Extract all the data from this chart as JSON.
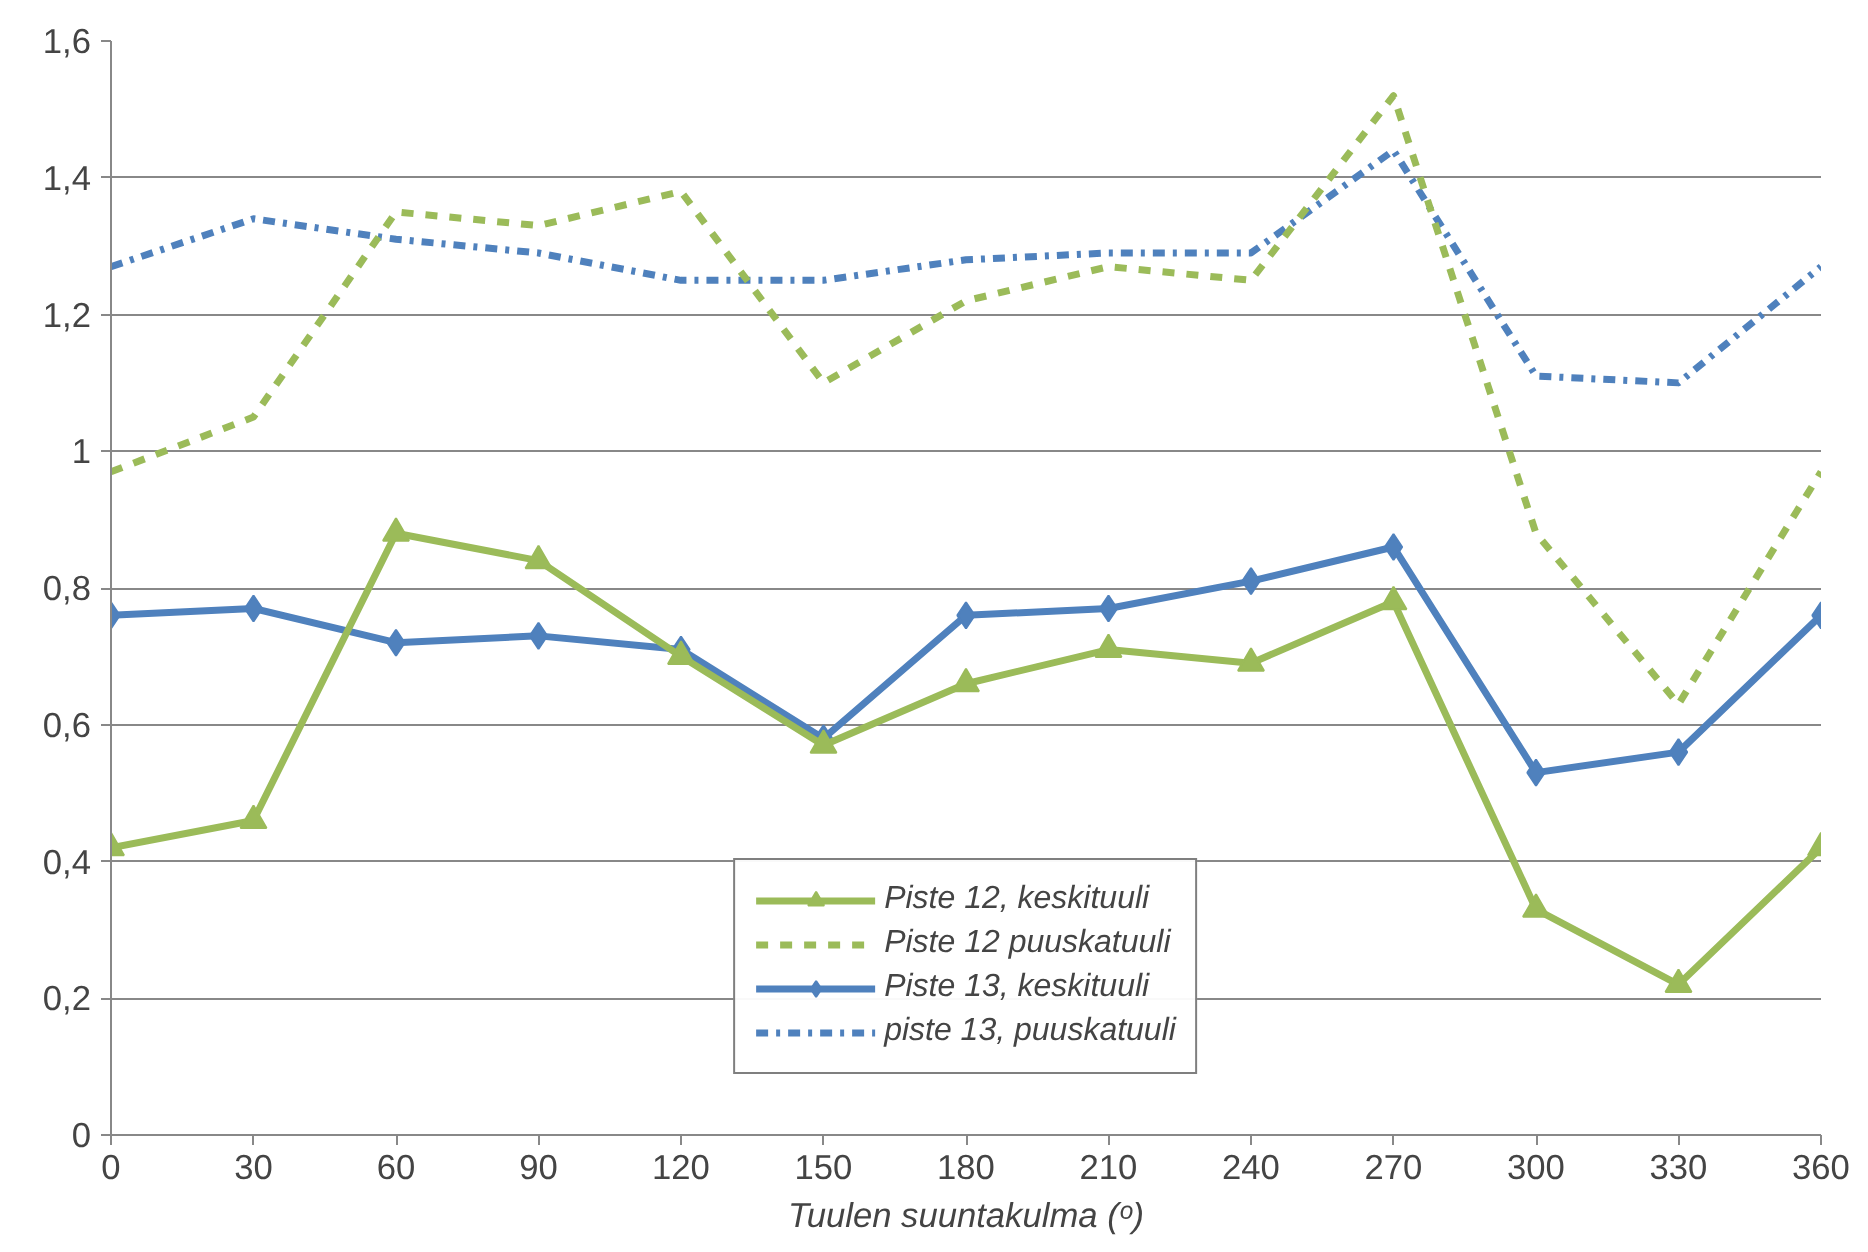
{
  "chart_data": {
    "type": "line",
    "xlabel": "Tuulen suuntakulma (ᵒ)",
    "x": [
      0,
      30,
      60,
      90,
      120,
      150,
      180,
      210,
      240,
      270,
      300,
      330,
      360
    ],
    "xlim": [
      0,
      360
    ],
    "xticks": [
      0,
      30,
      60,
      90,
      120,
      150,
      180,
      210,
      240,
      270,
      300,
      330,
      360
    ],
    "ylim": [
      0,
      1.6
    ],
    "yticks": [
      0,
      {
        "value": 0.2,
        "label": "0,2"
      },
      {
        "value": 0.4,
        "label": "0,4"
      },
      {
        "value": 0.6,
        "label": "0,6"
      },
      {
        "value": 0.8,
        "label": "0,8"
      },
      1,
      {
        "value": 1.2,
        "label": "1,2"
      },
      {
        "value": 1.4,
        "label": "1,4"
      },
      {
        "value": 1.6,
        "label": "1,6"
      }
    ],
    "grid": "y",
    "legend": "bottom",
    "series": [
      {
        "name": "Piste 12, keskituuli",
        "color": "#9bbb59",
        "marker": "triangle",
        "line_style": "solid",
        "values": [
          0.42,
          0.46,
          0.88,
          0.84,
          0.7,
          0.57,
          0.66,
          0.71,
          0.69,
          0.78,
          0.33,
          0.22,
          0.42
        ]
      },
      {
        "name": "Piste 12 puuskatuuli",
        "color": "#9bbb59",
        "marker": "none",
        "line_style": "dashed",
        "values": [
          0.97,
          1.05,
          1.35,
          1.33,
          1.38,
          1.1,
          1.22,
          1.27,
          1.25,
          1.52,
          0.88,
          0.63,
          0.97
        ]
      },
      {
        "name": "Piste 13, keskituuli",
        "color": "#4f81bd",
        "marker": "diamond",
        "line_style": "solid",
        "values": [
          0.76,
          0.77,
          0.72,
          0.73,
          0.71,
          0.58,
          0.76,
          0.77,
          0.81,
          0.86,
          0.53,
          0.56,
          0.76
        ]
      },
      {
        "name": "piste 13, puuskatuuli",
        "color": "#4f81bd",
        "marker": "none",
        "line_style": "dashdot",
        "values": [
          1.27,
          1.34,
          1.31,
          1.29,
          1.25,
          1.25,
          1.28,
          1.29,
          1.29,
          1.44,
          1.11,
          1.1,
          1.27
        ]
      }
    ]
  }
}
